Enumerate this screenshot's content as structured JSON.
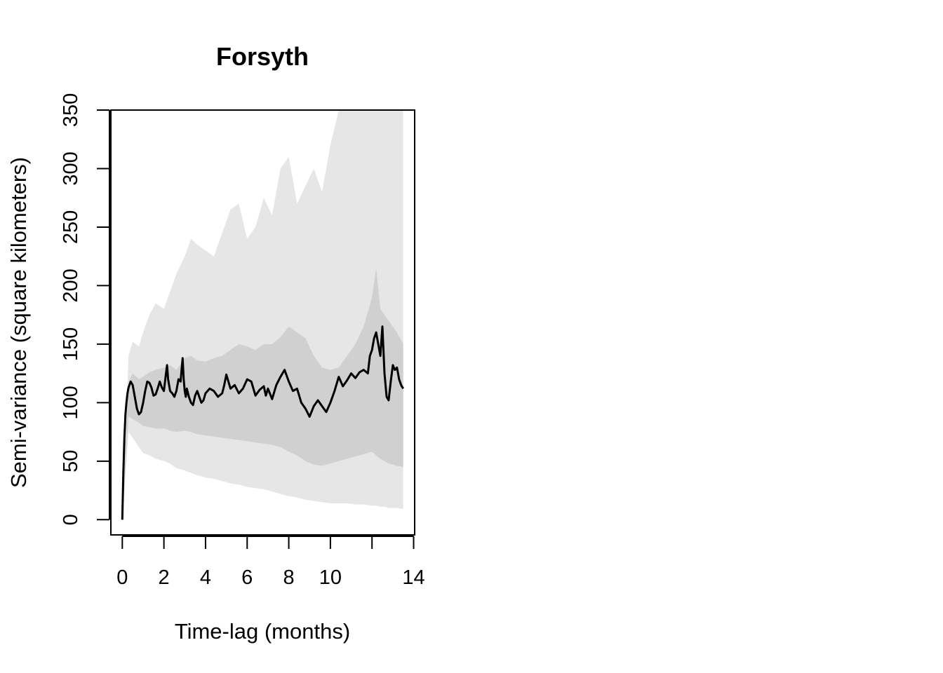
{
  "chart_data": {
    "type": "line",
    "title": "Forsyth",
    "xlabel": "Time-lag (months)",
    "ylabel": "Semi-variance (square kilometers)",
    "xlim": [
      -0.55,
      14.05
    ],
    "ylim": [
      -13,
      350
    ],
    "x_ticks": [
      0,
      2,
      4,
      6,
      8,
      10,
      12,
      14
    ],
    "x_tick_labels": [
      "0",
      "2",
      "4",
      "6",
      "8",
      "10",
      "",
      "14"
    ],
    "y_ticks": [
      0,
      50,
      100,
      150,
      200,
      250,
      300,
      350
    ],
    "y_tick_labels": [
      "0",
      "50",
      "100",
      "150",
      "200",
      "250",
      "300",
      "350"
    ],
    "grid": false,
    "colors": {
      "outer_band": "#e6e6e6",
      "inner_band": "#d0d0d0",
      "line": "#000000",
      "axis": "#000000"
    },
    "series": [
      {
        "kind": "band-outer",
        "x": [
          0.0,
          0.3,
          0.5,
          0.8,
          1.0,
          1.3,
          1.6,
          2.0,
          2.3,
          2.6,
          3.0,
          3.3,
          3.6,
          4.0,
          4.4,
          4.8,
          5.2,
          5.6,
          6.0,
          6.4,
          6.8,
          7.2,
          7.6,
          8.0,
          8.4,
          8.8,
          9.2,
          9.6,
          10.0,
          10.4,
          10.8,
          11.2,
          11.6,
          12.0,
          12.2,
          12.4,
          12.6,
          12.8,
          13.0,
          13.2,
          13.5
        ],
        "lower": [
          0,
          75,
          70,
          62,
          57,
          55,
          52,
          50,
          48,
          44,
          42,
          40,
          38,
          36,
          35,
          33,
          31,
          30,
          28,
          27,
          26,
          24,
          22,
          20,
          19,
          17,
          16,
          15,
          14,
          14,
          14,
          13,
          13,
          12,
          12,
          11,
          11,
          10,
          10,
          10,
          9
        ],
        "upper": [
          0,
          140,
          152,
          148,
          160,
          175,
          185,
          180,
          195,
          210,
          225,
          240,
          235,
          230,
          225,
          245,
          265,
          270,
          240,
          250,
          275,
          260,
          300,
          310,
          270,
          285,
          300,
          280,
          320,
          350,
          350,
          350,
          350,
          350,
          350,
          350,
          350,
          350,
          350,
          350,
          350
        ]
      },
      {
        "kind": "band-inner",
        "x": [
          0.0,
          0.3,
          0.5,
          0.8,
          1.0,
          1.3,
          1.6,
          2.0,
          2.3,
          2.6,
          3.0,
          3.3,
          3.6,
          4.0,
          4.4,
          4.8,
          5.2,
          5.6,
          6.0,
          6.4,
          6.8,
          7.2,
          7.6,
          8.0,
          8.4,
          8.8,
          9.2,
          9.6,
          10.0,
          10.4,
          10.8,
          11.2,
          11.6,
          12.0,
          12.2,
          12.4,
          12.6,
          12.8,
          13.0,
          13.2,
          13.5
        ],
        "lower": [
          0,
          88,
          86,
          83,
          80,
          79,
          78,
          78,
          76,
          75,
          76,
          75,
          73,
          72,
          71,
          70,
          69,
          68,
          67,
          66,
          65,
          64,
          62,
          58,
          55,
          50,
          47,
          46,
          48,
          50,
          52,
          54,
          56,
          58,
          55,
          52,
          50,
          48,
          47,
          46,
          45
        ],
        "upper": [
          0,
          118,
          125,
          120,
          122,
          126,
          128,
          130,
          132,
          128,
          138,
          140,
          136,
          135,
          138,
          140,
          145,
          150,
          148,
          145,
          150,
          150,
          156,
          165,
          160,
          155,
          140,
          130,
          128,
          130,
          140,
          150,
          165,
          190,
          215,
          180,
          175,
          170,
          165,
          160,
          150
        ]
      },
      {
        "kind": "empirical",
        "x": [
          0.0,
          0.05,
          0.1,
          0.15,
          0.2,
          0.25,
          0.3,
          0.4,
          0.5,
          0.6,
          0.7,
          0.8,
          0.9,
          1.0,
          1.1,
          1.2,
          1.3,
          1.4,
          1.5,
          1.6,
          1.7,
          1.8,
          1.9,
          2.0,
          2.1,
          2.15,
          2.2,
          2.25,
          2.3,
          2.4,
          2.5,
          2.6,
          2.7,
          2.8,
          2.85,
          2.9,
          2.95,
          3.0,
          3.05,
          3.1,
          3.2,
          3.3,
          3.4,
          3.5,
          3.6,
          3.7,
          3.8,
          3.9,
          4.0,
          4.2,
          4.4,
          4.6,
          4.8,
          4.9,
          5.0,
          5.2,
          5.4,
          5.6,
          5.8,
          6.0,
          6.2,
          6.4,
          6.6,
          6.8,
          6.9,
          7.0,
          7.2,
          7.4,
          7.6,
          7.8,
          8.0,
          8.2,
          8.4,
          8.6,
          8.8,
          9.0,
          9.2,
          9.4,
          9.6,
          9.8,
          10.0,
          10.2,
          10.4,
          10.6,
          10.8,
          11.0,
          11.2,
          11.4,
          11.6,
          11.8,
          11.9,
          12.0,
          12.1,
          12.2,
          12.3,
          12.4,
          12.5,
          12.6,
          12.7,
          12.8,
          12.9,
          13.0,
          13.1,
          13.2,
          13.3,
          13.4,
          13.5
        ],
        "y": [
          0,
          40,
          70,
          90,
          100,
          108,
          113,
          118,
          115,
          105,
          95,
          90,
          92,
          100,
          110,
          118,
          117,
          113,
          106,
          107,
          112,
          118,
          113,
          110,
          125,
          132,
          120,
          115,
          110,
          108,
          105,
          110,
          120,
          118,
          128,
          138,
          120,
          110,
          105,
          112,
          105,
          100,
          98,
          106,
          110,
          105,
          100,
          102,
          108,
          112,
          110,
          105,
          108,
          115,
          124,
          112,
          115,
          108,
          112,
          120,
          118,
          106,
          111,
          114,
          106,
          112,
          103,
          115,
          122,
          128,
          118,
          110,
          112,
          100,
          95,
          88,
          97,
          102,
          97,
          92,
          100,
          110,
          122,
          114,
          119,
          125,
          121,
          126,
          128,
          125,
          140,
          145,
          155,
          160,
          150,
          140,
          165,
          125,
          105,
          102,
          118,
          132,
          128,
          130,
          120,
          115,
          112
        ]
      }
    ]
  }
}
